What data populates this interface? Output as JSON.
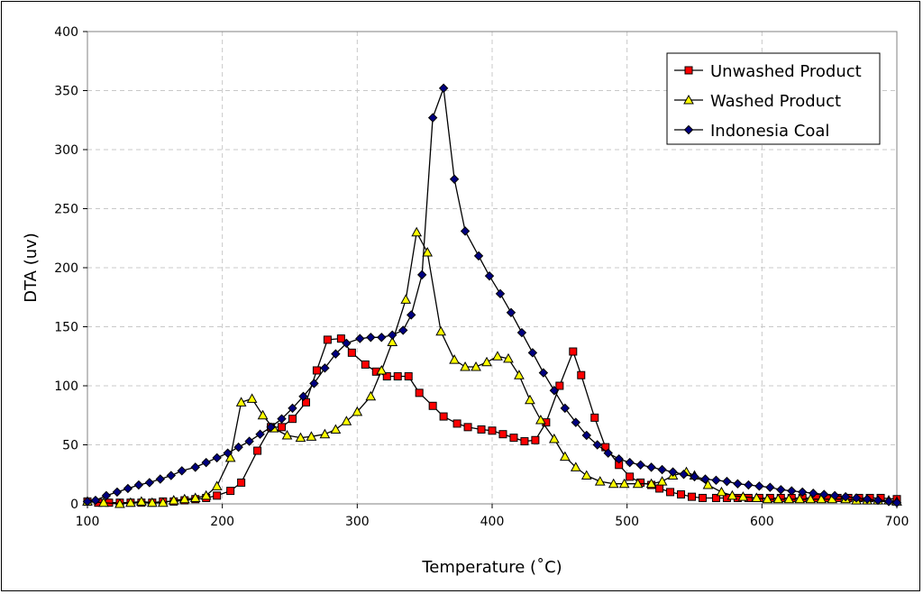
{
  "chart_data": {
    "type": "line",
    "title": "",
    "xlabel": "Temperature (˚C)",
    "ylabel": "DTA (uv)",
    "xlim": [
      100,
      700
    ],
    "ylim": [
      0,
      400
    ],
    "xticks": [
      100,
      200,
      300,
      400,
      500,
      600,
      700
    ],
    "yticks": [
      0,
      50,
      100,
      150,
      200,
      250,
      300,
      350,
      400
    ],
    "grid": true,
    "legend_position": "top-right",
    "series": [
      {
        "name": "Unwashed Product",
        "color": "#ff0000",
        "marker": "square",
        "points": [
          [
            100,
            2
          ],
          [
            108,
            1
          ],
          [
            116,
            1
          ],
          [
            124,
            1
          ],
          [
            132,
            1
          ],
          [
            140,
            1
          ],
          [
            148,
            1
          ],
          [
            156,
            2
          ],
          [
            164,
            2
          ],
          [
            172,
            3
          ],
          [
            180,
            4
          ],
          [
            188,
            5
          ],
          [
            196,
            7
          ],
          [
            206,
            11
          ],
          [
            214,
            18
          ],
          [
            226,
            45
          ],
          [
            236,
            65
          ],
          [
            244,
            65
          ],
          [
            252,
            72
          ],
          [
            262,
            86
          ],
          [
            270,
            113
          ],
          [
            278,
            139
          ],
          [
            288,
            140
          ],
          [
            296,
            128
          ],
          [
            306,
            118
          ],
          [
            314,
            112
          ],
          [
            322,
            108
          ],
          [
            330,
            108
          ],
          [
            338,
            108
          ],
          [
            346,
            94
          ],
          [
            356,
            83
          ],
          [
            364,
            74
          ],
          [
            374,
            68
          ],
          [
            382,
            65
          ],
          [
            392,
            63
          ],
          [
            400,
            62
          ],
          [
            408,
            59
          ],
          [
            416,
            56
          ],
          [
            424,
            53
          ],
          [
            432,
            54
          ],
          [
            440,
            69
          ],
          [
            450,
            100
          ],
          [
            460,
            129
          ],
          [
            466,
            109
          ],
          [
            476,
            73
          ],
          [
            484,
            48
          ],
          [
            494,
            33
          ],
          [
            502,
            23
          ],
          [
            510,
            18
          ],
          [
            518,
            16
          ],
          [
            524,
            13
          ],
          [
            532,
            10
          ],
          [
            540,
            8
          ],
          [
            548,
            6
          ],
          [
            556,
            5
          ],
          [
            566,
            5
          ],
          [
            574,
            5
          ],
          [
            582,
            5
          ],
          [
            590,
            5
          ],
          [
            598,
            5
          ],
          [
            606,
            5
          ],
          [
            614,
            5
          ],
          [
            622,
            5
          ],
          [
            630,
            5
          ],
          [
            640,
            5
          ],
          [
            648,
            5
          ],
          [
            656,
            5
          ],
          [
            664,
            5
          ],
          [
            672,
            5
          ],
          [
            680,
            5
          ],
          [
            688,
            5
          ],
          [
            700,
            4
          ]
        ]
      },
      {
        "name": "Washed Product",
        "color": "#ffff00",
        "marker": "triangle",
        "points": [
          [
            100,
            2
          ],
          [
            112,
            1
          ],
          [
            124,
            0
          ],
          [
            132,
            1
          ],
          [
            140,
            2
          ],
          [
            148,
            1
          ],
          [
            156,
            1
          ],
          [
            164,
            3
          ],
          [
            172,
            4
          ],
          [
            180,
            5
          ],
          [
            188,
            7
          ],
          [
            196,
            15
          ],
          [
            206,
            39
          ],
          [
            214,
            86
          ],
          [
            222,
            89
          ],
          [
            230,
            75
          ],
          [
            238,
            64
          ],
          [
            248,
            58
          ],
          [
            258,
            56
          ],
          [
            266,
            57
          ],
          [
            276,
            59
          ],
          [
            284,
            63
          ],
          [
            292,
            70
          ],
          [
            300,
            78
          ],
          [
            310,
            91
          ],
          [
            318,
            113
          ],
          [
            326,
            137
          ],
          [
            336,
            173
          ],
          [
            344,
            230
          ],
          [
            352,
            213
          ],
          [
            362,
            146
          ],
          [
            372,
            122
          ],
          [
            380,
            116
          ],
          [
            388,
            116
          ],
          [
            396,
            120
          ],
          [
            404,
            125
          ],
          [
            412,
            123
          ],
          [
            420,
            109
          ],
          [
            428,
            88
          ],
          [
            436,
            71
          ],
          [
            446,
            55
          ],
          [
            454,
            40
          ],
          [
            462,
            31
          ],
          [
            470,
            24
          ],
          [
            480,
            19
          ],
          [
            490,
            17
          ],
          [
            498,
            17
          ],
          [
            508,
            17
          ],
          [
            518,
            17
          ],
          [
            526,
            19
          ],
          [
            534,
            24
          ],
          [
            544,
            27
          ],
          [
            550,
            24
          ],
          [
            560,
            16
          ],
          [
            570,
            10
          ],
          [
            578,
            7
          ],
          [
            586,
            6
          ],
          [
            596,
            5
          ],
          [
            604,
            4
          ],
          [
            612,
            4
          ],
          [
            620,
            4
          ],
          [
            628,
            4
          ],
          [
            636,
            4
          ],
          [
            644,
            4
          ],
          [
            652,
            4
          ],
          [
            662,
            4
          ],
          [
            670,
            3
          ],
          [
            678,
            3
          ],
          [
            686,
            3
          ],
          [
            694,
            3
          ],
          [
            700,
            2
          ]
        ]
      },
      {
        "name": "Indonesia Coal",
        "color": "#000080",
        "marker": "diamond",
        "points": [
          [
            100,
            2
          ],
          [
            106,
            3
          ],
          [
            114,
            7
          ],
          [
            122,
            10
          ],
          [
            130,
            13
          ],
          [
            138,
            16
          ],
          [
            146,
            18
          ],
          [
            154,
            21
          ],
          [
            162,
            24
          ],
          [
            170,
            28
          ],
          [
            180,
            31
          ],
          [
            188,
            35
          ],
          [
            196,
            39
          ],
          [
            204,
            43
          ],
          [
            212,
            48
          ],
          [
            220,
            53
          ],
          [
            228,
            59
          ],
          [
            236,
            65
          ],
          [
            244,
            72
          ],
          [
            252,
            81
          ],
          [
            260,
            91
          ],
          [
            268,
            102
          ],
          [
            276,
            115
          ],
          [
            284,
            127
          ],
          [
            292,
            136
          ],
          [
            302,
            140
          ],
          [
            310,
            141
          ],
          [
            318,
            141
          ],
          [
            326,
            143
          ],
          [
            334,
            147
          ],
          [
            340,
            160
          ],
          [
            348,
            194
          ],
          [
            356,
            327
          ],
          [
            364,
            352
          ],
          [
            372,
            275
          ],
          [
            380,
            231
          ],
          [
            390,
            210
          ],
          [
            398,
            193
          ],
          [
            406,
            178
          ],
          [
            414,
            162
          ],
          [
            422,
            145
          ],
          [
            430,
            128
          ],
          [
            438,
            111
          ],
          [
            446,
            96
          ],
          [
            454,
            81
          ],
          [
            462,
            69
          ],
          [
            470,
            58
          ],
          [
            478,
            50
          ],
          [
            486,
            43
          ],
          [
            494,
            38
          ],
          [
            502,
            35
          ],
          [
            510,
            33
          ],
          [
            518,
            31
          ],
          [
            526,
            29
          ],
          [
            534,
            27
          ],
          [
            542,
            25
          ],
          [
            550,
            23
          ],
          [
            558,
            21
          ],
          [
            566,
            20
          ],
          [
            574,
            19
          ],
          [
            582,
            17
          ],
          [
            590,
            16
          ],
          [
            598,
            15
          ],
          [
            606,
            14
          ],
          [
            614,
            12
          ],
          [
            622,
            11
          ],
          [
            630,
            10
          ],
          [
            638,
            9
          ],
          [
            646,
            8
          ],
          [
            654,
            7
          ],
          [
            662,
            6
          ],
          [
            670,
            5
          ],
          [
            678,
            4
          ],
          [
            686,
            3
          ],
          [
            694,
            2
          ],
          [
            700,
            1
          ]
        ]
      }
    ]
  }
}
